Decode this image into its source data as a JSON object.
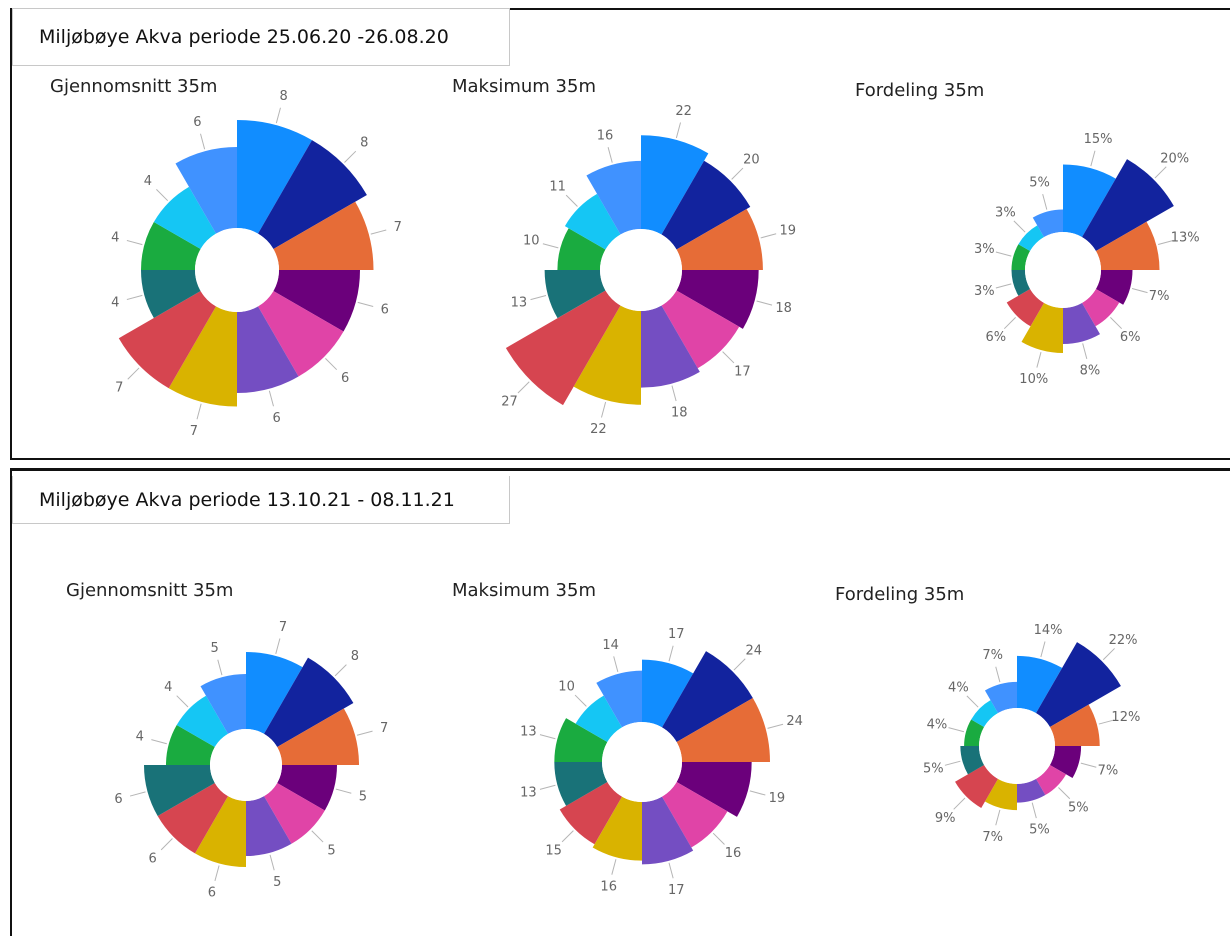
{
  "colors": [
    "#118DFF",
    "#12239E",
    "#E66C37",
    "#6B007B",
    "#E044A7",
    "#744EC2",
    "#D9B300",
    "#D64550",
    "#197278",
    "#1AAB40",
    "#15C6F4",
    "#4092FF"
  ],
  "panels": [
    {
      "title": "Miljøbøye Akva periode 25.06.20 -26.08.20"
    },
    {
      "title": "Miljøbøye Akva periode 13.10.21 - 08.11.21"
    }
  ],
  "chart_data": [
    {
      "type": "polar-bar",
      "title": "Gjennomsnitt 35m",
      "labels": [
        "8",
        "8",
        "7",
        "6",
        "6",
        "6",
        "7",
        "7",
        "4",
        "4",
        "4",
        "6"
      ],
      "values": [
        8,
        8,
        7,
        6,
        6,
        6,
        7,
        7,
        4,
        4,
        4,
        6
      ],
      "rmax": 8
    },
    {
      "type": "polar-bar",
      "title": "Maksimum 35m",
      "labels": [
        "22",
        "20",
        "19",
        "18",
        "17",
        "18",
        "22",
        "27",
        "13",
        "10",
        "11",
        "16"
      ],
      "values": [
        22,
        20,
        19,
        18,
        17,
        18,
        22,
        27,
        13,
        10,
        11,
        16
      ],
      "rmax": 27
    },
    {
      "type": "polar-bar",
      "title": "Fordeling 35m",
      "labels": [
        "15%",
        "20%",
        "13%",
        "7%",
        "6%",
        "8%",
        "10%",
        "6%",
        "3%",
        "3%",
        "3%",
        "5%"
      ],
      "values": [
        15,
        20,
        13,
        7,
        6,
        8,
        10,
        6,
        3,
        3,
        3,
        5
      ],
      "rmax": 20
    },
    {
      "type": "polar-bar",
      "title": "Gjennomsnitt 35m",
      "labels": [
        "7",
        "8",
        "7",
        "5",
        "5",
        "5",
        "6",
        "6",
        "6",
        "4",
        "4",
        "5"
      ],
      "values": [
        7,
        8,
        7,
        5,
        5,
        5,
        6,
        6,
        6,
        4,
        4,
        5
      ],
      "rmax": 8
    },
    {
      "type": "polar-bar",
      "title": "Maksimum 35m",
      "labels": [
        "17",
        "24",
        "24",
        "19",
        "16",
        "17",
        "16",
        "15",
        "13",
        "13",
        "10",
        "14"
      ],
      "values": [
        17,
        24,
        24,
        19,
        16,
        17,
        16,
        15,
        13,
        13,
        10,
        14
      ],
      "rmax": 24
    },
    {
      "type": "polar-bar",
      "title": "Fordeling 35m",
      "labels": [
        "14%",
        "22%",
        "12%",
        "7%",
        "5%",
        "5%",
        "7%",
        "9%",
        "5%",
        "4%",
        "4%",
        "7%"
      ],
      "values": [
        14,
        22,
        12,
        7,
        5,
        5,
        7,
        9,
        5,
        4,
        4,
        7
      ],
      "rmax": 22
    }
  ]
}
